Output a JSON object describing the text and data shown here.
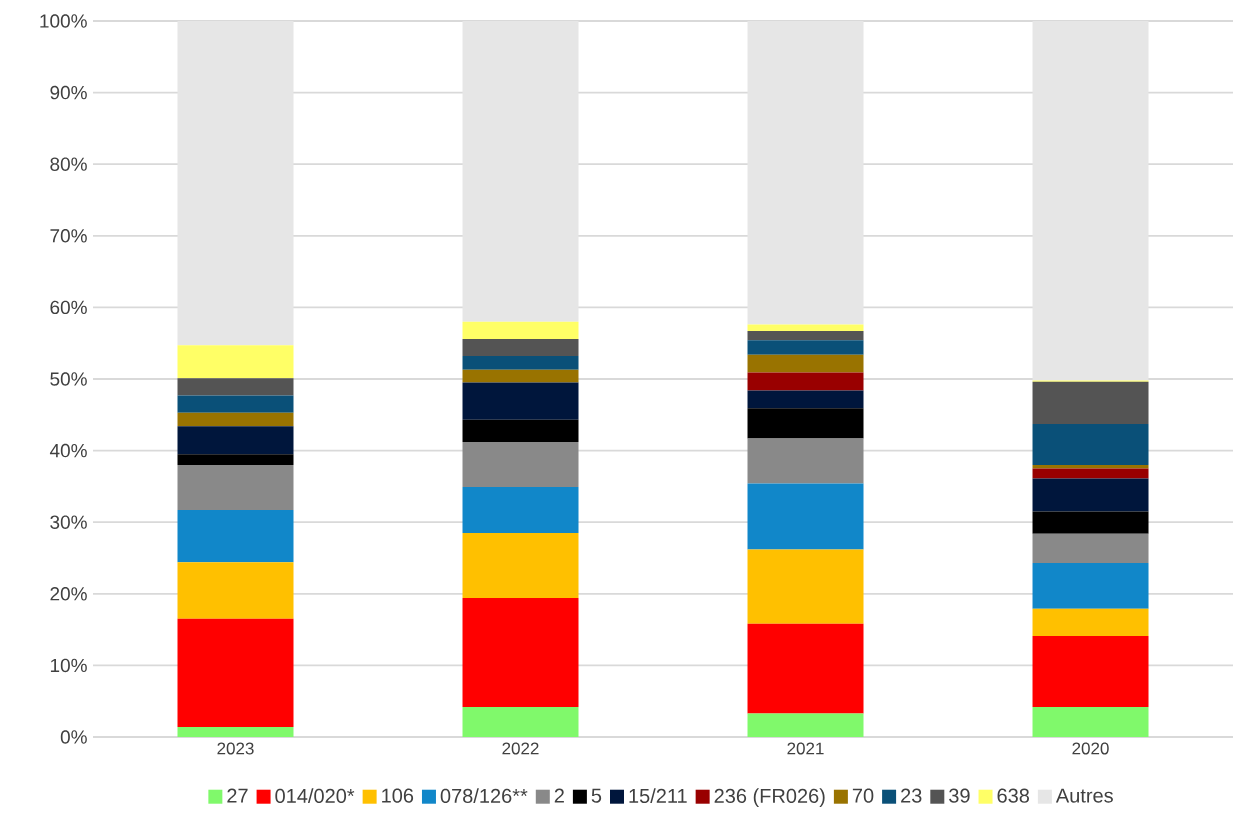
{
  "chart_data": {
    "type": "bar",
    "stacked": true,
    "categories": [
      "2023",
      "2022",
      "2021",
      "2020"
    ],
    "series": [
      {
        "name": "27",
        "color": "#80f96b",
        "values": [
          1.4,
          4.2,
          3.3,
          4.2
        ]
      },
      {
        "name": "014/020*",
        "color": "#ff0000",
        "values": [
          15.1,
          15.2,
          12.5,
          9.9
        ]
      },
      {
        "name": "106",
        "color": "#ffc000",
        "values": [
          7.9,
          9.1,
          10.4,
          3.8
        ]
      },
      {
        "name": "078/126**",
        "color": "#1187c9",
        "values": [
          7.3,
          6.4,
          9.2,
          6.4
        ]
      },
      {
        "name": "2",
        "color": "#898989",
        "values": [
          6.3,
          6.3,
          6.3,
          4.1
        ]
      },
      {
        "name": "5",
        "color": "#000000",
        "values": [
          1.5,
          3.1,
          4.2,
          3.1
        ]
      },
      {
        "name": "15/211",
        "color": "#00163c",
        "values": [
          3.9,
          5.2,
          2.5,
          4.6
        ]
      },
      {
        "name": "236 (FR026)",
        "color": "#990000",
        "values": [
          0,
          0,
          2.5,
          1.4
        ]
      },
      {
        "name": "70",
        "color": "#997300",
        "values": [
          1.9,
          1.8,
          2.5,
          0.5
        ]
      },
      {
        "name": "23",
        "color": "#0a5078",
        "values": [
          2.4,
          1.9,
          2.0,
          5.7
        ]
      },
      {
        "name": "39",
        "color": "#545454",
        "values": [
          2.4,
          2.4,
          1.3,
          5.9
        ]
      },
      {
        "name": "638",
        "color": "#ffff66",
        "values": [
          4.6,
          2.4,
          0.9,
          0.2
        ]
      },
      {
        "name": "Autres",
        "color": "#e6e6e6",
        "values": [
          45.3,
          42.0,
          42.4,
          50.2
        ]
      }
    ],
    "ylim": [
      0,
      100
    ],
    "yticks": [
      {
        "value": 0,
        "label": "0%"
      },
      {
        "value": 10,
        "label": "10%"
      },
      {
        "value": 20,
        "label": "20%"
      },
      {
        "value": 30,
        "label": "30%"
      },
      {
        "value": 40,
        "label": "40%"
      },
      {
        "value": 50,
        "label": "50%"
      },
      {
        "value": 60,
        "label": "60%"
      },
      {
        "value": 70,
        "label": "70%"
      },
      {
        "value": 80,
        "label": "80%"
      },
      {
        "value": 90,
        "label": "90%"
      },
      {
        "value": 100,
        "label": "100%"
      }
    ],
    "grid": "y",
    "legend": "bottom"
  }
}
